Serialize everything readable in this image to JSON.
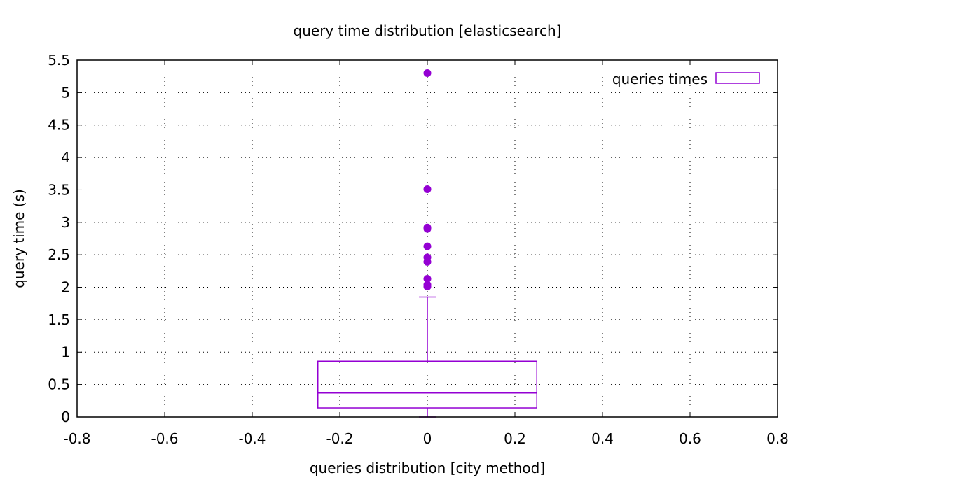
{
  "chart_data": {
    "type": "box",
    "title": "query time distribution [elasticsearch]",
    "xlabel": "queries distribution [city method]",
    "ylabel": "query time (s)",
    "xlim": [
      -0.8,
      0.8
    ],
    "ylim": [
      0,
      5.5
    ],
    "xticks": [
      "-0.8",
      "-0.6",
      "-0.4",
      "-0.2",
      "0",
      "0.2",
      "0.4",
      "0.6",
      "0.8"
    ],
    "yticks": [
      "0",
      "0.5",
      "1",
      "1.5",
      "2",
      "2.5",
      "3",
      "3.5",
      "4",
      "4.5",
      "5",
      "5.5"
    ],
    "grid": true,
    "legend_position": "top-right",
    "series": [
      {
        "name": "queries times",
        "color": "#9400d3",
        "x": 0,
        "box_width": 0.5,
        "min": 0,
        "q1": 0.14,
        "median": 0.37,
        "q3": 0.86,
        "max": 1.85,
        "outliers": [
          2.01,
          2.04,
          2.13,
          2.39,
          2.46,
          2.63,
          2.9,
          2.92,
          3.51,
          5.3
        ]
      }
    ]
  }
}
